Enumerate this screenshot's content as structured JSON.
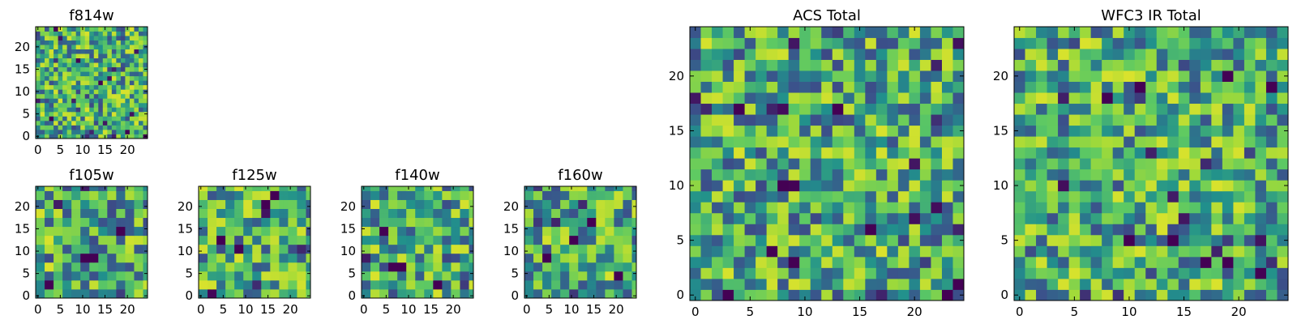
{
  "figure": {
    "colormap": [
      "#440154",
      "#3b528b",
      "#21908c",
      "#5dc963",
      "#a0da39",
      "#fde725"
    ]
  },
  "chart_data": [
    {
      "type": "heatmap",
      "title": "f814w",
      "xlabel": "",
      "ylabel": "",
      "grid": false,
      "xlim": [
        -0.5,
        24.5
      ],
      "ylim": [
        -0.5,
        24.5
      ],
      "size": 25,
      "pixel_step": 1,
      "xticks": [
        0,
        5,
        10,
        15,
        20
      ],
      "yticks": [
        0,
        5,
        10,
        15,
        20
      ],
      "seed": 11,
      "dark_cells": [
        [
          3,
          4
        ],
        [
          20,
          1
        ],
        [
          24,
          0
        ],
        [
          9,
          17
        ],
        [
          14,
          12
        ]
      ]
    },
    {
      "type": "heatmap",
      "title": "f105w",
      "xlabel": "",
      "ylabel": "",
      "grid": false,
      "xlim": [
        -0.5,
        24.5
      ],
      "ylim": [
        -0.5,
        24.5
      ],
      "size": 25,
      "pixel_step": 2,
      "xticks": [
        0,
        5,
        10,
        15,
        20
      ],
      "yticks": [
        0,
        5,
        10,
        15,
        20
      ],
      "seed": 23,
      "dark_cells": [
        [
          10,
          8
        ],
        [
          12,
          8
        ],
        [
          2,
          2
        ],
        [
          18,
          14
        ]
      ]
    },
    {
      "type": "heatmap",
      "title": "f125w",
      "xlabel": "",
      "ylabel": "",
      "grid": false,
      "xlim": [
        -0.5,
        24.5
      ],
      "ylim": [
        -0.5,
        24.5
      ],
      "size": 25,
      "pixel_step": 2,
      "xticks": [
        0,
        5,
        10,
        15,
        20
      ],
      "yticks": [
        0,
        5,
        10,
        15,
        20
      ],
      "seed": 37,
      "dark_cells": [
        [
          14,
          20
        ],
        [
          16,
          22
        ],
        [
          4,
          12
        ]
      ]
    },
    {
      "type": "heatmap",
      "title": "f140w",
      "xlabel": "",
      "ylabel": "",
      "grid": false,
      "xlim": [
        -0.5,
        24.5
      ],
      "ylim": [
        -0.5,
        24.5
      ],
      "size": 25,
      "pixel_step": 2,
      "xticks": [
        0,
        5,
        10,
        15,
        20
      ],
      "yticks": [
        0,
        5,
        10,
        15,
        20
      ],
      "seed": 41,
      "dark_cells": [
        [
          6,
          6
        ],
        [
          8,
          6
        ],
        [
          4,
          14
        ],
        [
          16,
          2
        ]
      ]
    },
    {
      "type": "heatmap",
      "title": "f160w",
      "xlabel": "",
      "ylabel": "",
      "grid": false,
      "xlim": [
        -0.5,
        24.5
      ],
      "ylim": [
        -0.5,
        24.5
      ],
      "size": 25,
      "pixel_step": 2,
      "xticks": [
        0,
        5,
        10,
        15,
        20
      ],
      "yticks": [
        0,
        5,
        10,
        15,
        20
      ],
      "seed": 53,
      "dark_cells": [
        [
          10,
          12
        ],
        [
          14,
          16
        ],
        [
          20,
          4
        ],
        [
          4,
          8
        ]
      ]
    },
    {
      "type": "heatmap",
      "title": "ACS Total",
      "xlabel": "",
      "ylabel": "",
      "grid": false,
      "xlim": [
        -0.5,
        24.5
      ],
      "ylim": [
        -0.5,
        24.5
      ],
      "size": 25,
      "pixel_step": 1,
      "xticks": [
        0,
        5,
        10,
        15,
        20
      ],
      "yticks": [
        0,
        5,
        10,
        15,
        20
      ],
      "seed": 67,
      "dark_cells": [
        [
          4,
          17
        ],
        [
          16,
          6
        ],
        [
          9,
          3
        ],
        [
          7,
          4
        ],
        [
          23,
          0
        ],
        [
          24,
          1
        ],
        [
          13,
          17
        ],
        [
          3,
          0
        ],
        [
          8,
          10
        ]
      ]
    },
    {
      "type": "heatmap",
      "title": "WFC3 IR Total",
      "xlabel": "",
      "ylabel": "",
      "grid": false,
      "xlim": [
        -0.5,
        24.5
      ],
      "ylim": [
        -0.5,
        24.5
      ],
      "size": 25,
      "pixel_step": 1,
      "xticks": [
        0,
        5,
        10,
        15,
        20
      ],
      "yticks": [
        0,
        5,
        10,
        15,
        20
      ],
      "seed": 79,
      "dark_cells": [
        [
          8,
          18
        ],
        [
          11,
          19
        ],
        [
          17,
          3
        ],
        [
          19,
          3
        ],
        [
          22,
          2
        ],
        [
          23,
          19
        ],
        [
          14,
          5
        ],
        [
          10,
          5
        ]
      ]
    }
  ]
}
